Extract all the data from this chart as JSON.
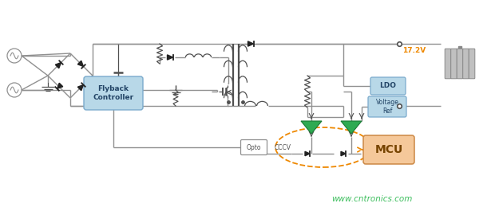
{
  "bg_color": "#ffffff",
  "line_color": "#909090",
  "line_color_dark": "#505050",
  "green_color": "#2eaa52",
  "blue_box_color": "#b8d8e8",
  "blue_box_edge": "#7aaacc",
  "orange_box_color": "#f5c89a",
  "orange_box_edge": "#cc8844",
  "orange_dashed_color": "#ee8800",
  "watermark_color": "#33bb55",
  "voltage_label_color": "#ee8800",
  "title_17v": "17.2V",
  "label_flyback": "Flyback\nController",
  "label_ldo": "LDO",
  "label_vref": "Voltage\nRef",
  "label_mcu": "MCU",
  "label_opto": "Opto",
  "label_cccv": "CCCV",
  "watermark": "www.cntronics.com"
}
